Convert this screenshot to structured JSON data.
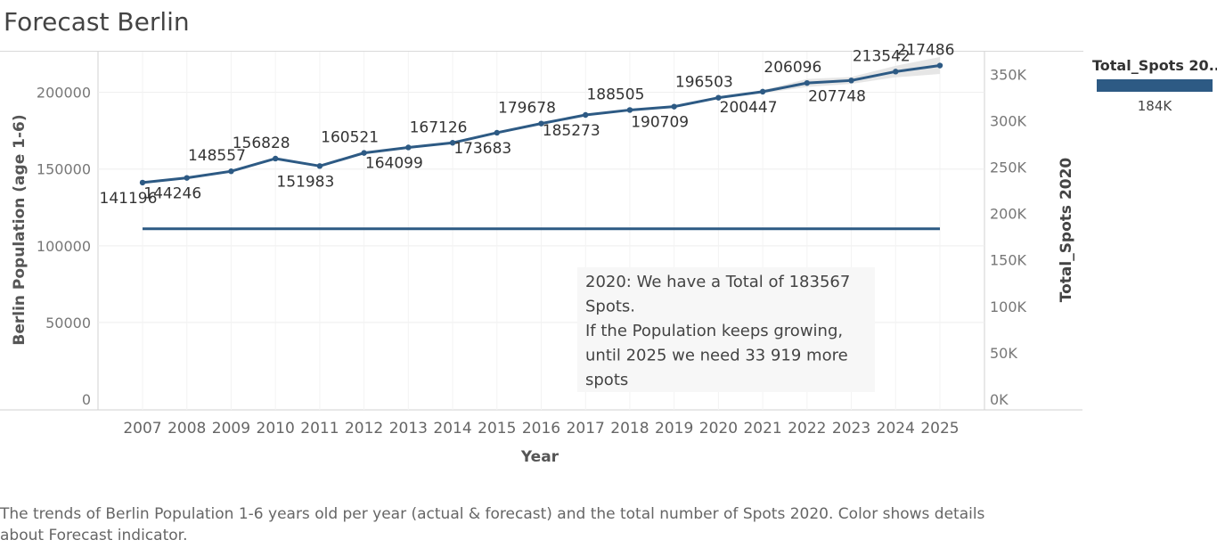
{
  "title": "Forecast Berlin",
  "legend": {
    "title": "Total_Spots 20..",
    "value_label": "184K",
    "color": "#2d5a84"
  },
  "caption": "The trends of Berlin Population 1-6 years old per year (actual & forecast)  and the total number of Spots 2020.  Color shows details about Forecast indicator.",
  "chart_data": {
    "type": "line",
    "xlabel": "Year",
    "ylabel": "Berlin Population (age 1-6)",
    "y2label": "Total_Spots 2020",
    "x": [
      2007,
      2008,
      2009,
      2010,
      2011,
      2012,
      2013,
      2014,
      2015,
      2016,
      2017,
      2018,
      2019,
      2020,
      2021,
      2022,
      2023,
      2024,
      2025
    ],
    "series": [
      {
        "values": [
          141196,
          144246,
          148557,
          156828,
          151983,
          160521,
          164099,
          167126,
          173683,
          179678,
          185273,
          188505,
          190709,
          196503,
          200447,
          206096,
          207748,
          213542,
          217486
        ],
        "color": "#2d5a84",
        "axis": "left"
      },
      {
        "name": "Total_Spots 2020",
        "values": [
          183567,
          183567,
          183567,
          183567,
          183567,
          183567,
          183567,
          183567,
          183567,
          183567,
          183567,
          183567,
          183567,
          183567,
          183567,
          183567,
          183567,
          183567,
          183567
        ],
        "color": "#2d5a84",
        "axis": "right"
      }
    ],
    "forecast_band": {
      "from_year": 2020,
      "lower": [
        196503,
        199400,
        203500,
        205500,
        209800,
        212000
      ],
      "upper": [
        196503,
        201500,
        208700,
        210000,
        217300,
        223000
      ],
      "color": "#e6e6e6"
    },
    "data_labels": [
      {
        "x": 2007,
        "text": "141196",
        "pos": "below"
      },
      {
        "x": 2008,
        "text": "144246",
        "pos": "below"
      },
      {
        "x": 2009,
        "text": "148557",
        "pos": "above"
      },
      {
        "x": 2010,
        "text": "156828",
        "pos": "above"
      },
      {
        "x": 2011,
        "text": "151983",
        "pos": "below"
      },
      {
        "x": 2012,
        "text": "160521",
        "pos": "above"
      },
      {
        "x": 2013,
        "text": "164099",
        "pos": "below"
      },
      {
        "x": 2014,
        "text": "167126",
        "pos": "above"
      },
      {
        "x": 2015,
        "text": "173683",
        "pos": "below"
      },
      {
        "x": 2016,
        "text": "179678",
        "pos": "above"
      },
      {
        "x": 2017,
        "text": "185273",
        "pos": "below"
      },
      {
        "x": 2018,
        "text": "188505",
        "pos": "above"
      },
      {
        "x": 2019,
        "text": "190709",
        "pos": "below"
      },
      {
        "x": 2020,
        "text": "196503",
        "pos": "above"
      },
      {
        "x": 2021,
        "text": "200447",
        "pos": "below"
      },
      {
        "x": 2022,
        "text": "206096",
        "pos": "above"
      },
      {
        "x": 2023,
        "text": "207748",
        "pos": "below"
      },
      {
        "x": 2024,
        "text": "213542",
        "pos": "above"
      },
      {
        "x": 2025,
        "text": "217486",
        "pos": "above"
      }
    ],
    "ylim": [
      0,
      230000
    ],
    "yticks": [
      0,
      50000,
      100000,
      150000,
      200000
    ],
    "y2lim": [
      0,
      380000
    ],
    "y2ticks": [
      0,
      50000,
      100000,
      150000,
      200000,
      250000,
      300000,
      350000
    ],
    "y2ticklabels": [
      "0K",
      "50K",
      "100K",
      "150K",
      "200K",
      "250K",
      "300K",
      "350K"
    ],
    "annotation": {
      "lines": [
        "2020: We have a Total of 183567",
        "Spots.",
        "If the Population keeps growing,",
        "until 2025 we need 33 919 more",
        "spots"
      ]
    },
    "grid": true
  }
}
